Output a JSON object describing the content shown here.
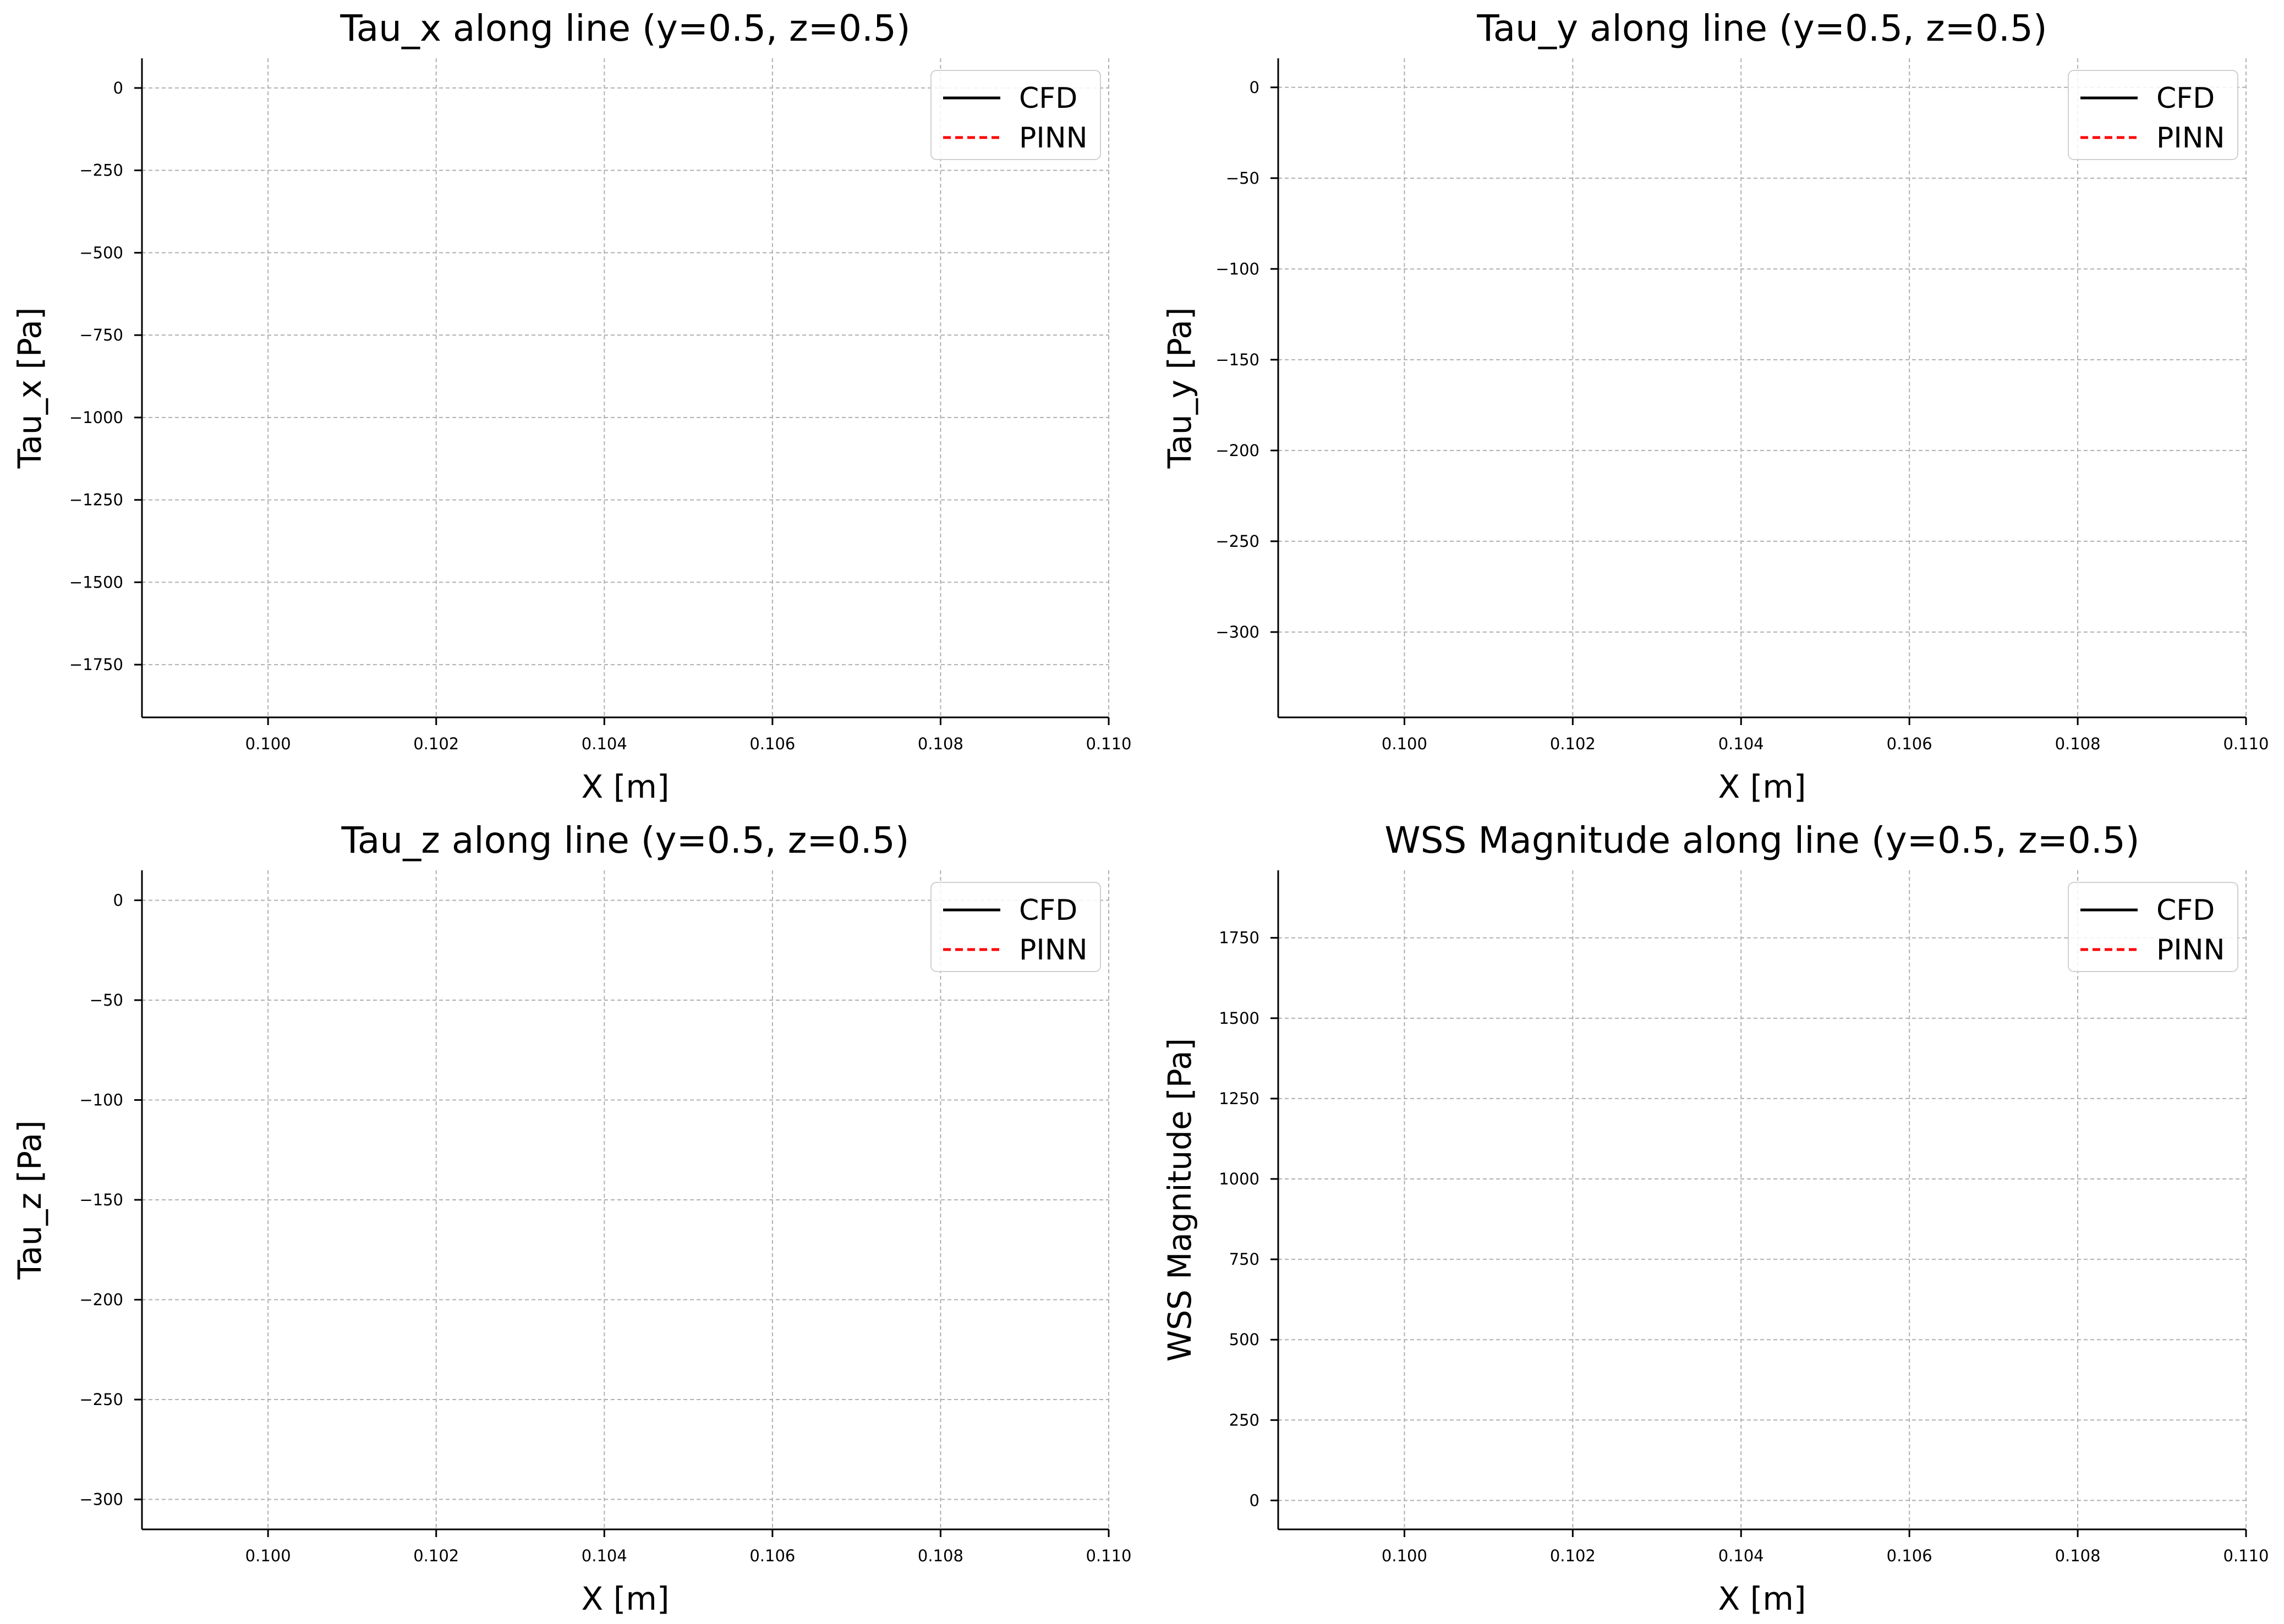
{
  "chart_data": [
    {
      "type": "line",
      "title": "Tau_x along line (y=0.5, z=0.5)",
      "xlabel": "X [m]",
      "ylabel": "Tau_x [Pa]",
      "xlim": [
        0.0985,
        0.11
      ],
      "ylim": [
        -1910,
        90
      ],
      "xticks": [
        0.1,
        0.102,
        0.104,
        0.106,
        0.108,
        0.11
      ],
      "xtick_labels": [
        "0.100",
        "0.102",
        "0.104",
        "0.106",
        "0.108",
        "0.110"
      ],
      "yticks": [
        0,
        -250,
        -500,
        -750,
        -1000,
        -1250,
        -1500,
        -1750
      ],
      "ytick_labels": [
        "0",
        "−250",
        "−500",
        "−750",
        "−1000",
        "−1250",
        "−1500",
        "−1750"
      ],
      "grid": true,
      "legend_position": "top-right",
      "series": [
        {
          "name": "CFD",
          "color": "#000000",
          "style": "solid",
          "x": [],
          "y": []
        },
        {
          "name": "PINN",
          "color": "#ff0000",
          "style": "dashed",
          "x": [],
          "y": []
        }
      ]
    },
    {
      "type": "line",
      "title": "Tau_y along line (y=0.5, z=0.5)",
      "xlabel": "X [m]",
      "ylabel": "Tau_y [Pa]",
      "xlim": [
        0.0985,
        0.11
      ],
      "ylim": [
        -347,
        16
      ],
      "xticks": [
        0.1,
        0.102,
        0.104,
        0.106,
        0.108,
        0.11
      ],
      "xtick_labels": [
        "0.100",
        "0.102",
        "0.104",
        "0.106",
        "0.108",
        "0.110"
      ],
      "yticks": [
        0,
        -50,
        -100,
        -150,
        -200,
        -250,
        -300
      ],
      "ytick_labels": [
        "0",
        "−50",
        "−100",
        "−150",
        "−200",
        "−250",
        "−300"
      ],
      "grid": true,
      "legend_position": "top-right",
      "series": [
        {
          "name": "CFD",
          "color": "#000000",
          "style": "solid",
          "x": [],
          "y": []
        },
        {
          "name": "PINN",
          "color": "#ff0000",
          "style": "dashed",
          "x": [],
          "y": []
        }
      ]
    },
    {
      "type": "line",
      "title": "Tau_z along line (y=0.5, z=0.5)",
      "xlabel": "X [m]",
      "ylabel": "Tau_z [Pa]",
      "xlim": [
        0.0985,
        0.11
      ],
      "ylim": [
        -315,
        15
      ],
      "xticks": [
        0.1,
        0.102,
        0.104,
        0.106,
        0.108,
        0.11
      ],
      "xtick_labels": [
        "0.100",
        "0.102",
        "0.104",
        "0.106",
        "0.108",
        "0.110"
      ],
      "yticks": [
        0,
        -50,
        -100,
        -150,
        -200,
        -250,
        -300
      ],
      "ytick_labels": [
        "0",
        "−50",
        "−100",
        "−150",
        "−200",
        "−250",
        "−300"
      ],
      "grid": true,
      "legend_position": "top-right",
      "series": [
        {
          "name": "CFD",
          "color": "#000000",
          "style": "solid",
          "x": [],
          "y": []
        },
        {
          "name": "PINN",
          "color": "#ff0000",
          "style": "dashed",
          "x": [],
          "y": []
        }
      ]
    },
    {
      "type": "line",
      "title": "WSS Magnitude along line (y=0.5, z=0.5)",
      "xlabel": "X [m]",
      "ylabel": "WSS Magnitude [Pa]",
      "xlim": [
        0.0985,
        0.11
      ],
      "ylim": [
        -90,
        1960
      ],
      "xticks": [
        0.1,
        0.102,
        0.104,
        0.106,
        0.108,
        0.11
      ],
      "xtick_labels": [
        "0.100",
        "0.102",
        "0.104",
        "0.106",
        "0.108",
        "0.110"
      ],
      "yticks": [
        0,
        250,
        500,
        750,
        1000,
        1250,
        1500,
        1750
      ],
      "ytick_labels": [
        "0",
        "250",
        "500",
        "750",
        "1000",
        "1250",
        "1500",
        "1750"
      ],
      "grid": true,
      "legend_position": "top-right",
      "series": [
        {
          "name": "CFD",
          "color": "#000000",
          "style": "solid",
          "x": [],
          "y": []
        },
        {
          "name": "PINN",
          "color": "#ff0000",
          "style": "dashed",
          "x": [],
          "y": []
        }
      ]
    }
  ]
}
